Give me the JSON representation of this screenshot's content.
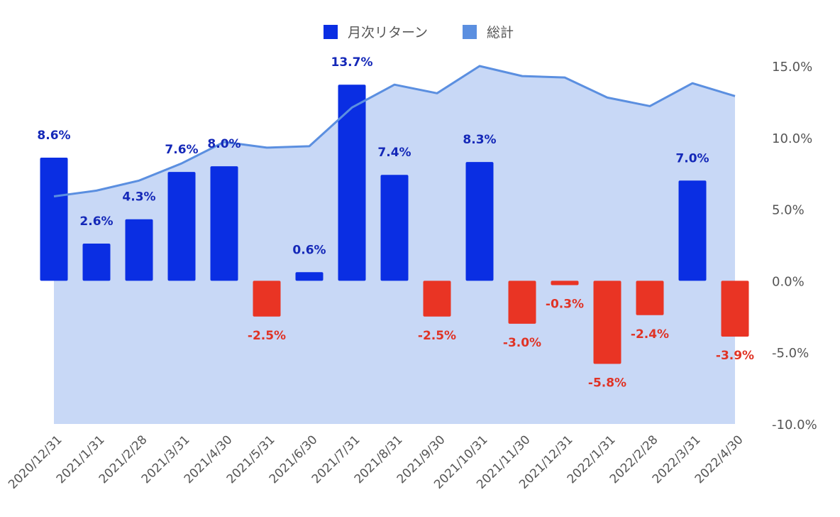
{
  "chart_data": {
    "type": "bar",
    "categories": [
      "2020/12/31",
      "2021/1/31",
      "2021/2/28",
      "2021/3/31",
      "2021/4/30",
      "2021/5/31",
      "2021/6/30",
      "2021/7/31",
      "2021/8/31",
      "2021/9/30",
      "2021/10/31",
      "2021/11/30",
      "2021/12/31",
      "2022/1/31",
      "2022/2/28",
      "2022/3/31",
      "2022/4/30"
    ],
    "series": [
      {
        "name": "月次リターン",
        "kind": "bar",
        "values": [
          8.6,
          2.6,
          4.3,
          7.6,
          8.0,
          -2.5,
          0.6,
          13.7,
          7.4,
          -2.5,
          8.3,
          -3.0,
          -0.3,
          -5.8,
          -2.4,
          7.0,
          -3.9
        ],
        "labels": [
          "8.6%",
          "2.6%",
          "4.3%",
          "7.6%",
          "8.0%",
          "-2.5%",
          "0.6%",
          "13.7%",
          "7.4%",
          "-2.5%",
          "8.3%",
          "-3.0%",
          "-0.3%",
          "-5.8%",
          "-2.4%",
          "7.0%",
          "-3.9%"
        ]
      },
      {
        "name": "総計",
        "kind": "area",
        "values": [
          5.9,
          6.3,
          7.0,
          8.2,
          9.7,
          9.3,
          9.4,
          12.1,
          13.7,
          13.1,
          15.0,
          14.3,
          14.2,
          12.8,
          12.2,
          13.8,
          12.9
        ]
      }
    ],
    "ylim": [
      -10,
      15
    ],
    "yticks": [
      "15.0%",
      "10.0%",
      "5.0%",
      "0.0%",
      "-5.0%",
      "-10.0%"
    ],
    "ytick_values": [
      15,
      10,
      5,
      0,
      -5,
      -10
    ],
    "y_axis_position": "right",
    "legend_position": "top-center",
    "grid": false,
    "colors": {
      "positive_bar": "#0a2ee3",
      "negative_bar": "#e93424",
      "positive_label": "#1428b8",
      "negative_label": "#e03325",
      "line": "#5b8fe0",
      "area": "#c8d8f6",
      "legend_bar": "#0a2ee3",
      "legend_total": "#5b8fe0"
    }
  }
}
